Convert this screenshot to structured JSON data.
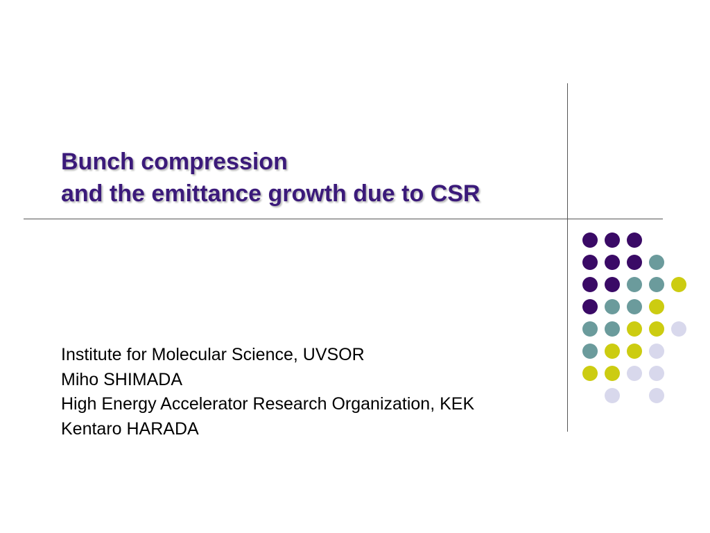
{
  "slide": {
    "title_lines": [
      "Bunch compression",
      "and the emittance growth due to CSR"
    ],
    "subtitle_lines": [
      "Institute for Molecular Science, UVSOR",
      "Miho SHIMADA",
      "High Energy Accelerator Research Organization, KEK",
      "Kentaro HARADA"
    ]
  },
  "colors": {
    "title": "#3b1a7a",
    "purple": "#3a0a66",
    "teal": "#6b9b9c",
    "yellow": "#cccc11",
    "lavender": "#d8d8ec"
  },
  "dot_pattern": [
    [
      "purple",
      "purple",
      "purple",
      "",
      ""
    ],
    [
      "purple",
      "purple",
      "purple",
      "teal",
      ""
    ],
    [
      "purple",
      "purple",
      "teal",
      "teal",
      "yellow"
    ],
    [
      "purple",
      "teal",
      "teal",
      "yellow",
      ""
    ],
    [
      "teal",
      "teal",
      "yellow",
      "yellow",
      "lavender"
    ],
    [
      "teal",
      "yellow",
      "yellow",
      "lavender",
      ""
    ],
    [
      "yellow",
      "yellow",
      "lavender",
      "lavender",
      ""
    ],
    [
      "",
      "lavender",
      "",
      "lavender",
      ""
    ]
  ]
}
